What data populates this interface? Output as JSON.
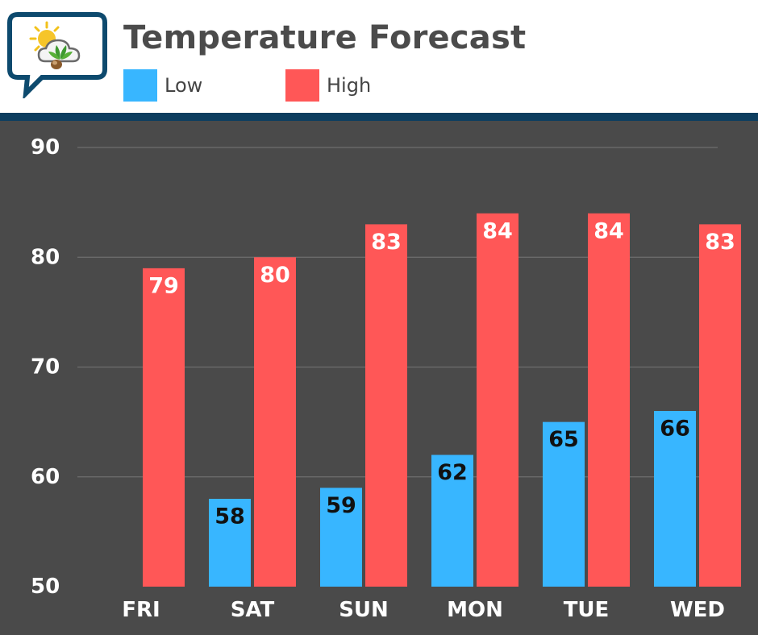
{
  "header": {
    "title": "Temperature Forecast",
    "logo_icon": "weather-chat-bubble-icon"
  },
  "colors": {
    "low": "#38b6ff",
    "high": "#ff5757",
    "background": "#4a4a4a",
    "band": "#0d3e5f"
  },
  "chart_data": {
    "type": "bar",
    "title": "Temperature Forecast",
    "categories": [
      "FRI",
      "SAT",
      "SUN",
      "MON",
      "TUE",
      "WED"
    ],
    "series": [
      {
        "name": "Low",
        "values": [
          null,
          58,
          59,
          62,
          65,
          66
        ]
      },
      {
        "name": "High",
        "values": [
          79,
          80,
          83,
          84,
          84,
          83
        ]
      }
    ],
    "ylim": [
      50,
      90
    ],
    "yticks": [
      50,
      60,
      70,
      80,
      90
    ],
    "grid": true,
    "legend": "top-left"
  }
}
